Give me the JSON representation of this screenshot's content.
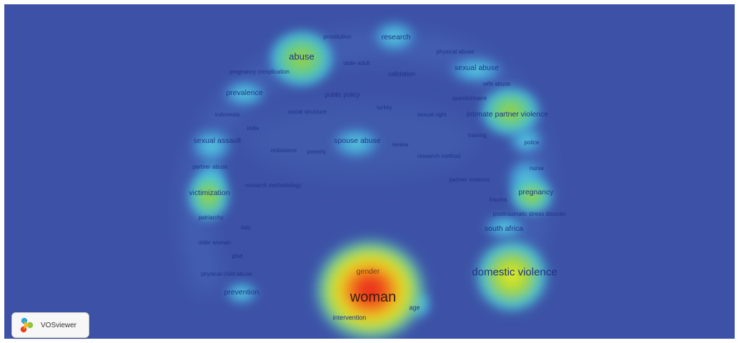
{
  "brand": {
    "name": "VOSviewer"
  },
  "colors": {
    "background": "#3d52a6",
    "heat_low": "#4aa8e8",
    "heat_mid": "#8bd23a",
    "heat_high": "#e9e62a",
    "heat_peak": "#e8231c",
    "label": "#1f3388"
  },
  "terms": [
    {
      "name": "abuse",
      "size": "l"
    },
    {
      "name": "prostitution",
      "size": "xs"
    },
    {
      "name": "research",
      "size": "m"
    },
    {
      "name": "physical abuse",
      "size": "xs"
    },
    {
      "name": "older adult",
      "size": "xs"
    },
    {
      "name": "sexual abuse",
      "size": "m"
    },
    {
      "name": "pregnancy complication",
      "size": "xs"
    },
    {
      "name": "validation",
      "size": "s"
    },
    {
      "name": "wife abuse",
      "size": "xs"
    },
    {
      "name": "prevalence",
      "size": "m"
    },
    {
      "name": "public policy",
      "size": "s"
    },
    {
      "name": "questionnaire",
      "size": "xs"
    },
    {
      "name": "turkey",
      "size": "xs"
    },
    {
      "name": "intimate partner violence",
      "size": "m"
    },
    {
      "name": "indonesia",
      "size": "xs"
    },
    {
      "name": "social structure",
      "size": "xs"
    },
    {
      "name": "sexual right",
      "size": "xs"
    },
    {
      "name": "india",
      "size": "xs"
    },
    {
      "name": "training",
      "size": "xs"
    },
    {
      "name": "sexual assault",
      "size": "m"
    },
    {
      "name": "spouse abuse",
      "size": "m"
    },
    {
      "name": "review",
      "size": "xs"
    },
    {
      "name": "police",
      "size": "xs"
    },
    {
      "name": "resistance",
      "size": "xs"
    },
    {
      "name": "poverty",
      "size": "xs"
    },
    {
      "name": "research method",
      "size": "xs"
    },
    {
      "name": "partner abuse",
      "size": "xs"
    },
    {
      "name": "nurse",
      "size": "xs"
    },
    {
      "name": "partner violence",
      "size": "xs"
    },
    {
      "name": "research methodology",
      "size": "xs"
    },
    {
      "name": "victimization",
      "size": "m"
    },
    {
      "name": "pregnancy",
      "size": "m"
    },
    {
      "name": "trauma",
      "size": "xs"
    },
    {
      "name": "patriarchy",
      "size": "xs"
    },
    {
      "name": "posttraumatic stress disorder",
      "size": "xs"
    },
    {
      "name": "italy",
      "size": "xs"
    },
    {
      "name": "south africa",
      "size": "m"
    },
    {
      "name": "older woman",
      "size": "xs"
    },
    {
      "name": "ptsd",
      "size": "xs"
    },
    {
      "name": "gender",
      "size": "m"
    },
    {
      "name": "domestic violence",
      "size": "xl"
    },
    {
      "name": "physical child abuse",
      "size": "xs"
    },
    {
      "name": "prevention",
      "size": "m"
    },
    {
      "name": "woman",
      "size": "xxl"
    },
    {
      "name": "age",
      "size": "s"
    },
    {
      "name": "intervention",
      "size": "s"
    }
  ]
}
